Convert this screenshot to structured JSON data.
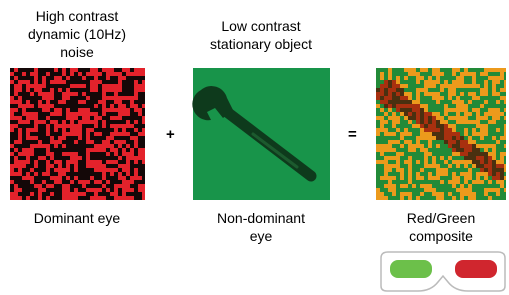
{
  "panels": [
    {
      "title": [
        "High contrast",
        "dynamic (10Hz)",
        "noise"
      ],
      "label": [
        "Dominant eye"
      ]
    },
    {
      "title": [
        "Low contrast",
        "stationary object"
      ],
      "label": [
        "Non-dominant",
        "eye"
      ]
    },
    {
      "label": [
        "Red/Green",
        "composite"
      ]
    }
  ],
  "operators": [
    "+",
    "="
  ]
}
